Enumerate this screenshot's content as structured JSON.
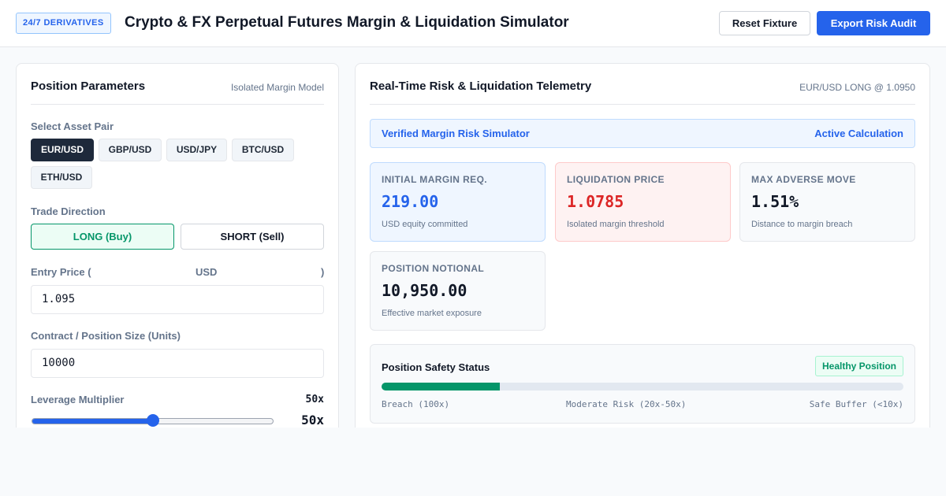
{
  "header": {
    "badge": "24/7 DERIVATIVES",
    "title": "Crypto & FX Perpetual Futures Margin & Liquidation Simulator",
    "reset_label": "Reset Fixture",
    "export_label": "Export Risk Audit"
  },
  "left": {
    "title": "Position Parameters",
    "subtitle": "Isolated Margin Model",
    "asset_label": "Select Asset Pair",
    "pairs": [
      "EUR/USD",
      "GBP/USD",
      "USD/JPY",
      "BTC/USD",
      "ETH/USD"
    ],
    "selected_pair": "EUR/USD",
    "direction_label": "Trade Direction",
    "long_label": "LONG (Buy)",
    "short_label": "SHORT (Sell)",
    "entry_label_prefix": "Entry Price (",
    "entry_label_currency": "USD",
    "entry_label_suffix": ")",
    "entry_value": "1.095",
    "size_label": "Contract / Position Size (Units)",
    "size_value": "10000",
    "leverage_label": "Leverage Multiplier",
    "leverage_display": "50x",
    "leverage_fraction": 0.5
  },
  "right": {
    "title": "Real-Time Risk & Liquidation Telemetry",
    "subtitle": "EUR/USD LONG @ 1.0950",
    "banner_left": "Verified Margin Risk Simulator",
    "banner_right": "Active Calculation",
    "cards": [
      {
        "label": "INITIAL MARGIN REQ.",
        "value": "219.00",
        "note": "USD equity committed",
        "color": "#2563eb"
      },
      {
        "label": "LIQUIDATION PRICE",
        "value": "1.0785",
        "note": "Isolated margin threshold",
        "color": "#dc2626"
      },
      {
        "label": "MAX ADVERSE MOVE",
        "value": "1.51%",
        "note": "Distance to margin breach",
        "color": "#111827"
      },
      {
        "label": "POSITION NOTIONAL",
        "value": "10,950.00",
        "note": "Effective market exposure",
        "color": "#111827"
      }
    ],
    "safety": {
      "title": "Position Safety Status",
      "badge": "Healthy Position",
      "fill_fraction": 0.227,
      "scale": [
        "Breach (100x)",
        "Moderate Risk (20x-50x)",
        "Safe Buffer (<10x)"
      ]
    }
  },
  "colors": {
    "accent": "#2563eb",
    "dark": "#1e293b",
    "success": "#059669",
    "danger": "#dc2626"
  }
}
